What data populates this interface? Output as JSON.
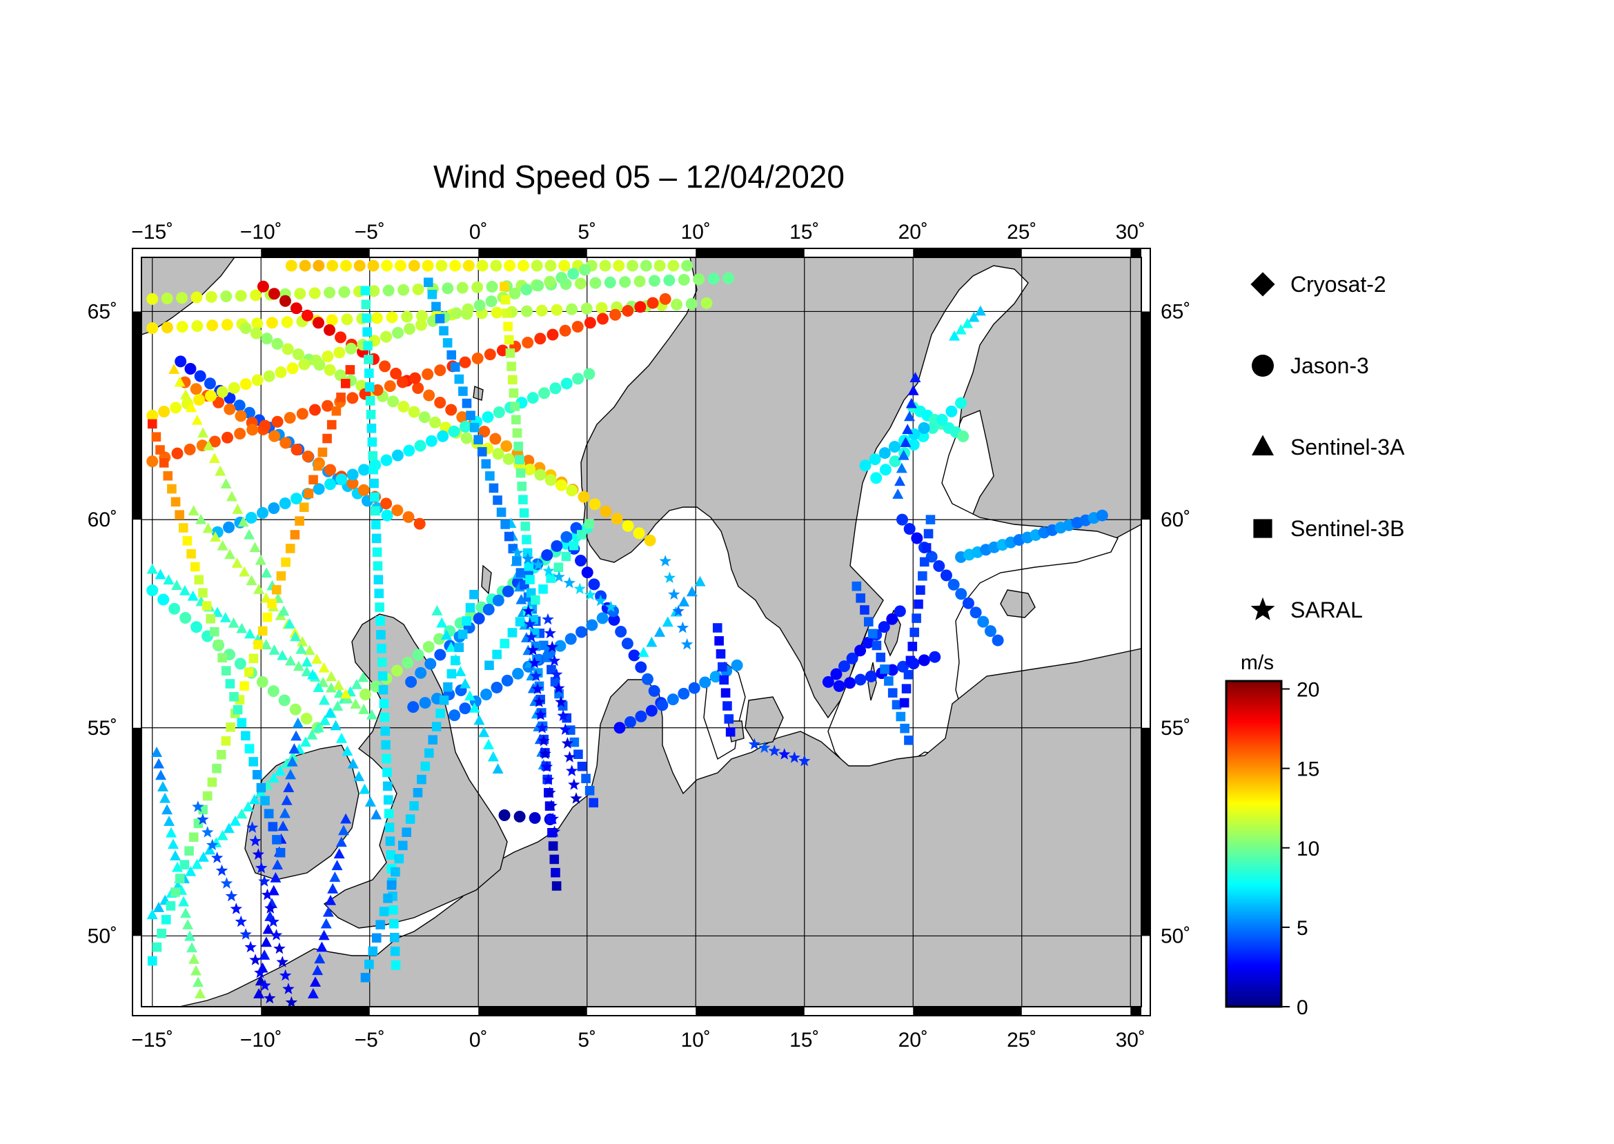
{
  "title": "Wind Speed 05 – 12/04/2020",
  "map": {
    "lon_range": [
      -15.5,
      30.5
    ],
    "lat_range": [
      48.3,
      66.3
    ],
    "lon_ticks": [
      -15,
      -10,
      -5,
      0,
      5,
      10,
      15,
      20,
      25,
      30
    ],
    "lon_tick_labels": [
      "−15˚",
      "−10˚",
      "−5˚",
      "0˚",
      "5˚",
      "10˚",
      "15˚",
      "20˚",
      "25˚",
      "30˚"
    ],
    "lat_ticks": [
      50,
      55,
      60,
      65
    ],
    "lat_tick_labels": [
      "50˚",
      "55˚",
      "60˚",
      "65˚"
    ],
    "land_color": "#bebebe",
    "sea_color": "#ffffff"
  },
  "legend": {
    "items": [
      {
        "label": "Cryosat-2",
        "marker": "diamond"
      },
      {
        "label": "Jason-3",
        "marker": "circle"
      },
      {
        "label": "Sentinel-3A",
        "marker": "triangle"
      },
      {
        "label": "Sentinel-3B",
        "marker": "square"
      },
      {
        "label": "SARAL",
        "marker": "star"
      }
    ]
  },
  "colorbar": {
    "unit": "m/s",
    "range": [
      0,
      20.5
    ],
    "ticks": [
      0,
      5,
      10,
      15,
      20
    ],
    "tick_labels": [
      "0",
      "5",
      "10",
      "15",
      "20"
    ],
    "colors": [
      "#00007f",
      "#0000ff",
      "#007fff",
      "#00ffff",
      "#7fff7f",
      "#ffff00",
      "#ff7f00",
      "#ff0000",
      "#7f0000"
    ]
  },
  "tracks": [
    {
      "marker": "circle",
      "from": [
        -8.6,
        66.1
      ],
      "to": [
        9.6,
        66.1
      ],
      "n": 30,
      "v0": 14,
      "v1": 11
    },
    {
      "marker": "circle",
      "from": [
        -15,
        65.3
      ],
      "to": [
        11.5,
        65.8
      ],
      "n": 40,
      "v0": 12,
      "v1": 10
    },
    {
      "marker": "circle",
      "from": [
        -15,
        64.6
      ],
      "to": [
        10.5,
        65.2
      ],
      "n": 38,
      "v0": 13,
      "v1": 11
    },
    {
      "marker": "circle",
      "from": [
        -13.7,
        63.8
      ],
      "to": [
        -4.2,
        60.1
      ],
      "n": 22,
      "v0": 3,
      "v1": 7
    },
    {
      "marker": "circle",
      "from": [
        -13.5,
        63.3
      ],
      "to": [
        -2.7,
        59.9
      ],
      "n": 22,
      "v0": 16,
      "v1": 16
    },
    {
      "marker": "circle",
      "from": [
        -9.9,
        65.6
      ],
      "to": [
        7.9,
        59.5
      ],
      "n": 36,
      "v0": 19,
      "v1": 13
    },
    {
      "marker": "circle",
      "from": [
        -10.7,
        64.6
      ],
      "to": [
        4.3,
        60.7
      ],
      "n": 32,
      "v0": 11,
      "v1": 12
    },
    {
      "marker": "circle",
      "from": [
        -15,
        62.5
      ],
      "to": [
        4.9,
        66.0
      ],
      "n": 38,
      "v0": 13,
      "v1": 10
    },
    {
      "marker": "circle",
      "from": [
        -15,
        61.4
      ],
      "to": [
        8.6,
        65.3
      ],
      "n": 42,
      "v0": 16,
      "v1": 17
    },
    {
      "marker": "circle",
      "from": [
        -12.0,
        59.7
      ],
      "to": [
        5.1,
        63.5
      ],
      "n": 34,
      "v0": 6,
      "v1": 9
    },
    {
      "marker": "circle",
      "from": [
        -5.2,
        55.8
      ],
      "to": [
        5.0,
        59.8
      ],
      "n": 22,
      "v0": 11,
      "v1": 8
    },
    {
      "marker": "circle",
      "from": [
        -3.1,
        56.1
      ],
      "to": [
        4.5,
        59.8
      ],
      "n": 18,
      "v0": 5,
      "v1": 4
    },
    {
      "marker": "circle",
      "from": [
        4.4,
        59.3
      ],
      "to": [
        8.4,
        55.6
      ],
      "n": 14,
      "v0": 3,
      "v1": 4
    },
    {
      "marker": "circle",
      "from": [
        -1.1,
        55.3
      ],
      "to": [
        6.2,
        57.8
      ],
      "n": 16,
      "v0": 5,
      "v1": 5
    },
    {
      "marker": "circle",
      "from": [
        6.5,
        55.0
      ],
      "to": [
        11.9,
        56.5
      ],
      "n": 12,
      "v0": 3,
      "v1": 6
    },
    {
      "marker": "circle",
      "from": [
        -3.0,
        55.5
      ],
      "to": [
        -0.8,
        55.9
      ],
      "n": 5,
      "v0": 5,
      "v1": 5
    },
    {
      "marker": "circle",
      "from": [
        -15,
        58.3
      ],
      "to": [
        -7.4,
        55.0
      ],
      "n": 16,
      "v0": 8,
      "v1": 11
    },
    {
      "marker": "circle",
      "from": [
        20.0,
        62.7
      ],
      "to": [
        22.3,
        62.0
      ],
      "n": 8,
      "v0": 8,
      "v1": 9
    },
    {
      "marker": "circle",
      "from": [
        18.3,
        61.0
      ],
      "to": [
        22.2,
        62.8
      ],
      "n": 10,
      "v0": 8,
      "v1": 8
    },
    {
      "marker": "circle",
      "from": [
        17.8,
        61.3
      ],
      "to": [
        20.5,
        62.2
      ],
      "n": 7,
      "v0": 7,
      "v1": 7
    },
    {
      "marker": "circle",
      "from": [
        19.5,
        60.0
      ],
      "to": [
        23.9,
        57.1
      ],
      "n": 14,
      "v0": 3,
      "v1": 5
    },
    {
      "marker": "circle",
      "from": [
        22.2,
        59.1
      ],
      "to": [
        28.7,
        60.1
      ],
      "n": 18,
      "v0": 6,
      "v1": 5
    },
    {
      "marker": "circle",
      "from": [
        16.1,
        56.1
      ],
      "to": [
        19.4,
        57.8
      ],
      "n": 10,
      "v0": 3,
      "v1": 3
    },
    {
      "marker": "circle",
      "from": [
        16.6,
        56.0
      ],
      "to": [
        21.0,
        56.7
      ],
      "n": 10,
      "v0": 3,
      "v1": 3
    },
    {
      "marker": "circle",
      "from": [
        1.2,
        52.9
      ],
      "to": [
        3.3,
        52.8
      ],
      "n": 4,
      "v0": 1,
      "v1": 1
    },
    {
      "marker": "triangle",
      "from": [
        -15,
        50.5
      ],
      "to": [
        -5.3,
        56.2
      ],
      "n": 34,
      "v0": 7,
      "v1": 9
    },
    {
      "marker": "triangle",
      "from": [
        -15,
        58.8
      ],
      "to": [
        -4.9,
        55.3
      ],
      "n": 28,
      "v0": 8,
      "v1": 10
    },
    {
      "marker": "triangle",
      "from": [
        -13.1,
        60.2
      ],
      "to": [
        -6.1,
        55.8
      ],
      "n": 22,
      "v0": 11,
      "v1": 12
    },
    {
      "marker": "triangle",
      "from": [
        -12.8,
        48.6
      ],
      "to": [
        -14.8,
        54.4
      ],
      "n": 22,
      "v0": 11,
      "v1": 5
    },
    {
      "marker": "triangle",
      "from": [
        -10.1,
        48.6
      ],
      "to": [
        -8.3,
        55.1
      ],
      "n": 22,
      "v0": 2,
      "v1": 5
    },
    {
      "marker": "triangle",
      "from": [
        -7.6,
        48.6
      ],
      "to": [
        -6.1,
        52.8
      ],
      "n": 16,
      "v0": 3,
      "v1": 4
    },
    {
      "marker": "triangle",
      "from": [
        -4.7,
        52.9
      ],
      "to": [
        -14.0,
        63.6
      ],
      "n": 36,
      "v0": 6,
      "v1": 13
    },
    {
      "marker": "triangle",
      "from": [
        1.5,
        59.9
      ],
      "to": [
        3.0,
        54.1
      ],
      "n": 20,
      "v0": 6,
      "v1": 5
    },
    {
      "marker": "triangle",
      "from": [
        -1.9,
        57.8
      ],
      "to": [
        0.9,
        54.0
      ],
      "n": 14,
      "v0": 8,
      "v1": 7
    },
    {
      "marker": "triangle",
      "from": [
        7.6,
        56.8
      ],
      "to": [
        10.2,
        58.5
      ],
      "n": 8,
      "v0": 7,
      "v1": 6
    },
    {
      "marker": "triangle",
      "from": [
        19.3,
        60.6
      ],
      "to": [
        20.1,
        63.4
      ],
      "n": 10,
      "v0": 5,
      "v1": 3
    },
    {
      "marker": "triangle",
      "from": [
        21.9,
        64.4
      ],
      "to": [
        23.1,
        65.0
      ],
      "n": 5,
      "v0": 8,
      "v1": 7
    },
    {
      "marker": "square",
      "from": [
        -2.3,
        65.7
      ],
      "to": [
        5.3,
        53.2
      ],
      "n": 44,
      "v0": 6,
      "v1": 4
    },
    {
      "marker": "square",
      "from": [
        -5.9,
        63.6
      ],
      "to": [
        -15,
        49.4
      ],
      "n": 44,
      "v0": 17,
      "v1": 8
    },
    {
      "marker": "square",
      "from": [
        -5.2,
        65.5
      ],
      "to": [
        -3.8,
        49.3
      ],
      "n": 50,
      "v0": 8,
      "v1": 7
    },
    {
      "marker": "square",
      "from": [
        1.2,
        65.6
      ],
      "to": [
        3.6,
        51.2
      ],
      "n": 46,
      "v0": 13,
      "v1": 1
    },
    {
      "marker": "square",
      "from": [
        -15,
        62.3
      ],
      "to": [
        -9.1,
        52.0
      ],
      "n": 34,
      "v0": 17,
      "v1": 4
    },
    {
      "marker": "square",
      "from": [
        5.1,
        59.9
      ],
      "to": [
        0.5,
        56.5
      ],
      "n": 14,
      "v0": 9,
      "v1": 7
    },
    {
      "marker": "square",
      "from": [
        -0.2,
        58.2
      ],
      "to": [
        -5.2,
        49.0
      ],
      "n": 30,
      "v0": 7,
      "v1": 6
    },
    {
      "marker": "square",
      "from": [
        11.0,
        57.4
      ],
      "to": [
        11.6,
        54.9
      ],
      "n": 9,
      "v0": 3,
      "v1": 3
    },
    {
      "marker": "square",
      "from": [
        17.4,
        58.4
      ],
      "to": [
        19.8,
        54.7
      ],
      "n": 14,
      "v0": 4,
      "v1": 5
    },
    {
      "marker": "square",
      "from": [
        20.8,
        60.0
      ],
      "to": [
        19.6,
        55.6
      ],
      "n": 14,
      "v0": 4,
      "v1": 3
    },
    {
      "marker": "star",
      "from": [
        6.1,
        57.9
      ],
      "to": [
        1.8,
        59.2
      ],
      "n": 10,
      "v0": 7,
      "v1": 6
    },
    {
      "marker": "star",
      "from": [
        2.3,
        57.8
      ],
      "to": [
        3.5,
        52.5
      ],
      "n": 18,
      "v0": 3,
      "v1": 2
    },
    {
      "marker": "star",
      "from": [
        3.2,
        57.6
      ],
      "to": [
        4.5,
        53.3
      ],
      "n": 14,
      "v0": 3,
      "v1": 2
    },
    {
      "marker": "star",
      "from": [
        -12.9,
        53.1
      ],
      "to": [
        -9.6,
        48.5
      ],
      "n": 16,
      "v0": 5,
      "v1": 2
    },
    {
      "marker": "star",
      "from": [
        -10.4,
        52.6
      ],
      "to": [
        -8.6,
        48.4
      ],
      "n": 14,
      "v0": 3,
      "v1": 2
    },
    {
      "marker": "star",
      "from": [
        8.6,
        59.0
      ],
      "to": [
        9.6,
        57.0
      ],
      "n": 6,
      "v0": 6,
      "v1": 5
    },
    {
      "marker": "star",
      "from": [
        12.7,
        54.6
      ],
      "to": [
        15.0,
        54.2
      ],
      "n": 6,
      "v0": 4,
      "v1": 3
    }
  ]
}
